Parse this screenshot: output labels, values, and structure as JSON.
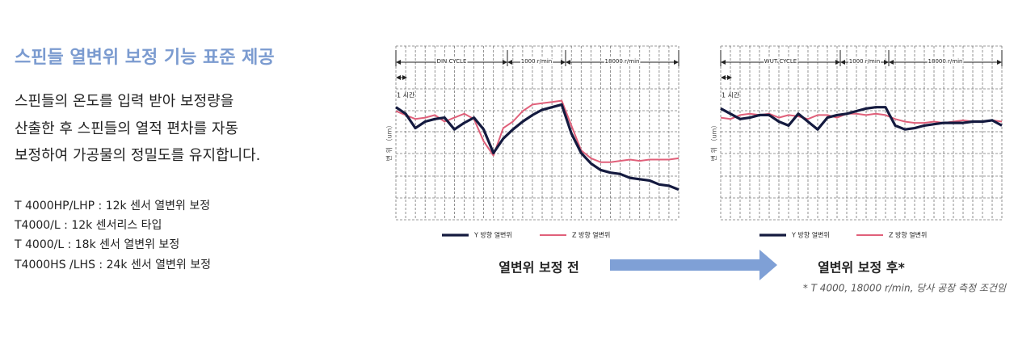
{
  "heading": "스핀들 열변위 보정 기능 표준 제공",
  "description": [
    "스핀들의 온도를 입력 받아 보정량을",
    "산출한 후 스핀들의 열적 편차를 자동",
    "보정하여 가공물의 정밀도를 유지합니다."
  ],
  "specs": [
    "T 4000HP/LHP : 12k 센서 열변위 보정",
    "T4000/L : 12k 센서리스 타입",
    "T 4000/L : 18k 센서 열변위 보정",
    "T4000HS /LHS : 24k 센서 열변위 보정"
  ],
  "charts": [
    {
      "type": "line",
      "caption": "열변위 보정 전",
      "phases": [
        "DIN CYCLE",
        "1000 r/min",
        "18000 r/min"
      ],
      "time_label": "1 시간",
      "y_label": "변 위 （um）",
      "ylim": [
        0,
        100
      ],
      "grid": true,
      "series": [
        {
          "name": "Y 방향 열변위",
          "color": "#141a3f",
          "values": [
            86,
            81,
            70,
            75,
            77,
            78,
            69,
            74,
            78,
            69,
            51,
            62,
            69,
            75,
            80,
            84,
            86,
            88,
            66,
            51,
            43,
            38,
            36,
            35,
            32,
            31,
            30,
            27,
            26,
            23
          ]
        },
        {
          "name": "Z 방향 열변위",
          "color": "#e0607a",
          "values": [
            83,
            80,
            77,
            78,
            80,
            75,
            78,
            81,
            77,
            60,
            49,
            70,
            75,
            83,
            88,
            89,
            90,
            91,
            72,
            53,
            47,
            44,
            44,
            45,
            46,
            45,
            46,
            46,
            46,
            47
          ]
        }
      ]
    },
    {
      "type": "line",
      "caption": "열변위 보정 후*",
      "phases": [
        "WUT CYCLE",
        "1000 r/min",
        "18000 r/min"
      ],
      "time_label": "1 시간",
      "y_label": "변 위 （um）",
      "ylim": [
        0,
        100
      ],
      "grid": true,
      "series": [
        {
          "name": "Y 방향 열변위",
          "color": "#141a3f",
          "values": [
            85,
            81,
            77,
            78,
            80,
            80,
            75,
            72,
            81,
            75,
            69,
            78,
            80,
            81,
            83,
            85,
            86,
            86,
            72,
            69,
            70,
            72,
            73,
            74,
            74,
            74,
            75,
            75,
            76,
            72
          ]
        },
        {
          "name": "Z 방향 열변위",
          "color": "#e0607a",
          "values": [
            78,
            77,
            80,
            81,
            80,
            81,
            78,
            80,
            79,
            77,
            80,
            80,
            78,
            81,
            81,
            80,
            81,
            80,
            77,
            75,
            74,
            74,
            75,
            74,
            75,
            76,
            75,
            75,
            76,
            75
          ]
        }
      ]
    }
  ],
  "footnote": "* T 4000, 18000 r/min, 당사 공장 측정 조건임"
}
